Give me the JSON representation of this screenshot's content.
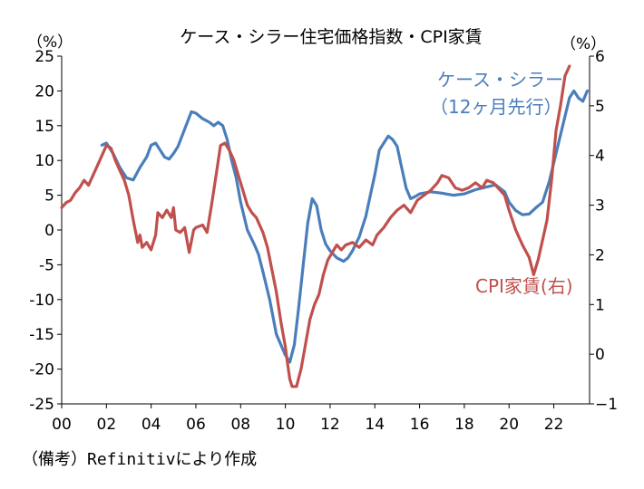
{
  "chart_data": {
    "type": "line",
    "title": "ケース・シラー住宅価格指数・CPI家賃",
    "left_unit": "（%）",
    "right_unit": "（%）",
    "x_ticks": [
      "00",
      "02",
      "04",
      "06",
      "08",
      "10",
      "12",
      "14",
      "16",
      "18",
      "20",
      "22"
    ],
    "x_range": [
      2000,
      2023.6
    ],
    "y_left_range": [
      -25,
      25
    ],
    "y_left_ticks": [
      25,
      20,
      15,
      10,
      5,
      0,
      -5,
      -10,
      -15,
      -20,
      -25
    ],
    "y_right_range": [
      -1,
      6
    ],
    "y_right_ticks": [
      6,
      5,
      4,
      3,
      2,
      1,
      0,
      -1
    ],
    "grid": false,
    "series": [
      {
        "name": "ケース・シラー",
        "name_line2": "（12ヶ月先行）",
        "axis": "left",
        "color": "#4a7ebb",
        "points": [
          [
            2001.8,
            12.2
          ],
          [
            2002.0,
            12.5
          ],
          [
            2002.3,
            11.0
          ],
          [
            2002.6,
            9.0
          ],
          [
            2002.9,
            7.5
          ],
          [
            2003.2,
            7.2
          ],
          [
            2003.5,
            9.0
          ],
          [
            2003.8,
            10.5
          ],
          [
            2004.0,
            12.2
          ],
          [
            2004.2,
            12.5
          ],
          [
            2004.4,
            11.5
          ],
          [
            2004.6,
            10.5
          ],
          [
            2004.8,
            10.2
          ],
          [
            2005.0,
            11.0
          ],
          [
            2005.2,
            12.0
          ],
          [
            2005.5,
            14.5
          ],
          [
            2005.8,
            17.0
          ],
          [
            2006.0,
            16.8
          ],
          [
            2006.3,
            16.0
          ],
          [
            2006.6,
            15.5
          ],
          [
            2006.8,
            15.0
          ],
          [
            2007.0,
            15.5
          ],
          [
            2007.2,
            15.0
          ],
          [
            2007.4,
            13.0
          ],
          [
            2007.6,
            10.0
          ],
          [
            2007.8,
            7.5
          ],
          [
            2008.0,
            4.0
          ],
          [
            2008.3,
            0.0
          ],
          [
            2008.6,
            -2.0
          ],
          [
            2008.8,
            -3.5
          ],
          [
            2009.0,
            -6.0
          ],
          [
            2009.3,
            -10.0
          ],
          [
            2009.6,
            -15.0
          ],
          [
            2009.8,
            -16.5
          ],
          [
            2010.0,
            -18.0
          ],
          [
            2010.2,
            -19.0
          ],
          [
            2010.4,
            -16.5
          ],
          [
            2010.6,
            -11.0
          ],
          [
            2010.8,
            -5.0
          ],
          [
            2011.0,
            1.0
          ],
          [
            2011.2,
            4.5
          ],
          [
            2011.4,
            3.5
          ],
          [
            2011.6,
            0.0
          ],
          [
            2011.8,
            -2.0
          ],
          [
            2012.0,
            -3.0
          ],
          [
            2012.3,
            -4.0
          ],
          [
            2012.6,
            -4.5
          ],
          [
            2012.8,
            -4.0
          ],
          [
            2013.0,
            -3.0
          ],
          [
            2013.3,
            -1.0
          ],
          [
            2013.6,
            2.0
          ],
          [
            2013.8,
            5.0
          ],
          [
            2014.0,
            8.0
          ],
          [
            2014.2,
            11.5
          ],
          [
            2014.4,
            12.5
          ],
          [
            2014.6,
            13.5
          ],
          [
            2014.8,
            13.0
          ],
          [
            2015.0,
            12.0
          ],
          [
            2015.2,
            9.0
          ],
          [
            2015.4,
            6.0
          ],
          [
            2015.6,
            4.5
          ],
          [
            2015.8,
            4.8
          ],
          [
            2016.0,
            5.2
          ],
          [
            2016.5,
            5.5
          ],
          [
            2017.0,
            5.3
          ],
          [
            2017.5,
            5.0
          ],
          [
            2018.0,
            5.2
          ],
          [
            2018.5,
            5.8
          ],
          [
            2019.0,
            6.2
          ],
          [
            2019.4,
            6.5
          ],
          [
            2019.8,
            5.5
          ],
          [
            2020.0,
            4.0
          ],
          [
            2020.3,
            2.8
          ],
          [
            2020.6,
            2.2
          ],
          [
            2020.9,
            2.3
          ],
          [
            2021.2,
            3.2
          ],
          [
            2021.5,
            4.0
          ],
          [
            2021.8,
            7.0
          ],
          [
            2022.1,
            11.0
          ],
          [
            2022.4,
            15.0
          ],
          [
            2022.7,
            19.0
          ],
          [
            2022.9,
            20.0
          ],
          [
            2023.1,
            19.0
          ],
          [
            2023.3,
            18.5
          ],
          [
            2023.5,
            20.0
          ]
        ]
      },
      {
        "name": "CPI家賃(右)",
        "axis": "right",
        "color": "#c0504d",
        "points": [
          [
            2000.0,
            2.95
          ],
          [
            2000.2,
            3.05
          ],
          [
            2000.4,
            3.1
          ],
          [
            2000.6,
            3.25
          ],
          [
            2000.8,
            3.35
          ],
          [
            2001.0,
            3.5
          ],
          [
            2001.2,
            3.4
          ],
          [
            2001.4,
            3.6
          ],
          [
            2001.6,
            3.8
          ],
          [
            2001.8,
            4.0
          ],
          [
            2002.0,
            4.2
          ],
          [
            2002.2,
            4.15
          ],
          [
            2002.4,
            3.9
          ],
          [
            2002.6,
            3.7
          ],
          [
            2002.8,
            3.5
          ],
          [
            2003.0,
            3.2
          ],
          [
            2003.2,
            2.7
          ],
          [
            2003.4,
            2.25
          ],
          [
            2003.5,
            2.4
          ],
          [
            2003.6,
            2.15
          ],
          [
            2003.8,
            2.25
          ],
          [
            2004.0,
            2.1
          ],
          [
            2004.2,
            2.4
          ],
          [
            2004.3,
            2.85
          ],
          [
            2004.5,
            2.75
          ],
          [
            2004.7,
            2.9
          ],
          [
            2004.9,
            2.75
          ],
          [
            2005.0,
            2.95
          ],
          [
            2005.1,
            2.5
          ],
          [
            2005.3,
            2.45
          ],
          [
            2005.5,
            2.55
          ],
          [
            2005.6,
            2.3
          ],
          [
            2005.7,
            2.05
          ],
          [
            2005.9,
            2.5
          ],
          [
            2006.0,
            2.55
          ],
          [
            2006.3,
            2.6
          ],
          [
            2006.5,
            2.45
          ],
          [
            2006.7,
            3.0
          ],
          [
            2006.9,
            3.6
          ],
          [
            2007.1,
            4.2
          ],
          [
            2007.3,
            4.25
          ],
          [
            2007.5,
            4.1
          ],
          [
            2007.7,
            3.9
          ],
          [
            2007.9,
            3.6
          ],
          [
            2008.1,
            3.3
          ],
          [
            2008.3,
            3.0
          ],
          [
            2008.5,
            2.85
          ],
          [
            2008.7,
            2.75
          ],
          [
            2009.0,
            2.45
          ],
          [
            2009.2,
            2.15
          ],
          [
            2009.4,
            1.7
          ],
          [
            2009.6,
            1.25
          ],
          [
            2009.8,
            0.65
          ],
          [
            2010.0,
            0.15
          ],
          [
            2010.1,
            -0.2
          ],
          [
            2010.2,
            -0.5
          ],
          [
            2010.3,
            -0.65
          ],
          [
            2010.5,
            -0.65
          ],
          [
            2010.7,
            -0.3
          ],
          [
            2010.9,
            0.2
          ],
          [
            2011.1,
            0.7
          ],
          [
            2011.3,
            1.0
          ],
          [
            2011.5,
            1.2
          ],
          [
            2011.7,
            1.6
          ],
          [
            2011.9,
            1.9
          ],
          [
            2012.1,
            2.05
          ],
          [
            2012.3,
            2.2
          ],
          [
            2012.5,
            2.1
          ],
          [
            2012.7,
            2.2
          ],
          [
            2013.0,
            2.25
          ],
          [
            2013.3,
            2.15
          ],
          [
            2013.6,
            2.3
          ],
          [
            2013.9,
            2.2
          ],
          [
            2014.1,
            2.4
          ],
          [
            2014.4,
            2.55
          ],
          [
            2014.7,
            2.75
          ],
          [
            2015.0,
            2.9
          ],
          [
            2015.3,
            3.0
          ],
          [
            2015.6,
            2.85
          ],
          [
            2015.9,
            3.1
          ],
          [
            2016.2,
            3.2
          ],
          [
            2016.5,
            3.3
          ],
          [
            2016.8,
            3.45
          ],
          [
            2017.0,
            3.6
          ],
          [
            2017.3,
            3.55
          ],
          [
            2017.6,
            3.35
          ],
          [
            2017.9,
            3.3
          ],
          [
            2018.2,
            3.35
          ],
          [
            2018.5,
            3.45
          ],
          [
            2018.8,
            3.35
          ],
          [
            2019.0,
            3.5
          ],
          [
            2019.3,
            3.45
          ],
          [
            2019.6,
            3.3
          ],
          [
            2019.8,
            3.2
          ],
          [
            2020.0,
            2.9
          ],
          [
            2020.3,
            2.5
          ],
          [
            2020.6,
            2.2
          ],
          [
            2020.9,
            1.95
          ],
          [
            2021.1,
            1.6
          ],
          [
            2021.3,
            1.9
          ],
          [
            2021.5,
            2.3
          ],
          [
            2021.7,
            2.7
          ],
          [
            2021.9,
            3.5
          ],
          [
            2022.1,
            4.5
          ],
          [
            2022.3,
            5.0
          ],
          [
            2022.5,
            5.6
          ],
          [
            2022.7,
            5.8
          ]
        ]
      }
    ]
  },
  "source_note": "（備考）Refinitivにより作成"
}
